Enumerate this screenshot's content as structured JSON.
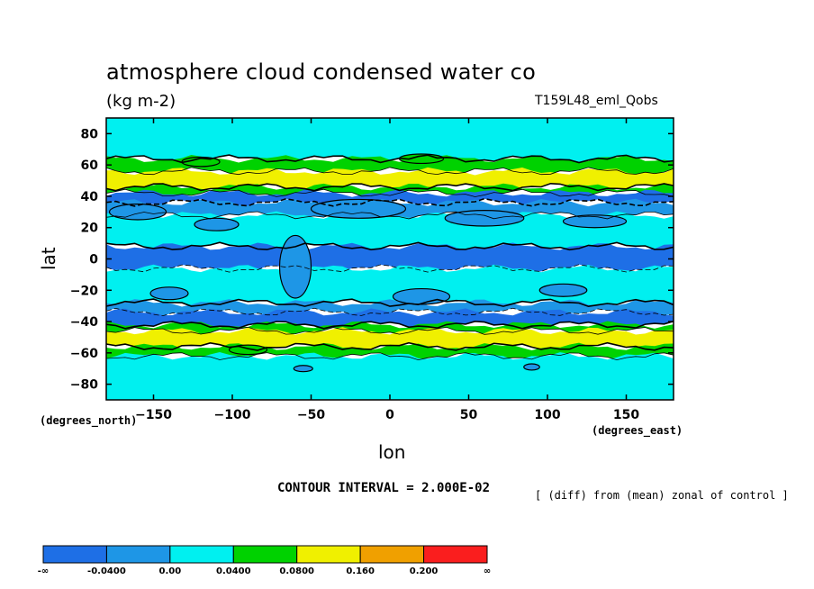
{
  "chart_data": {
    "type": "heatmap",
    "title": "atmosphere cloud condensed water co",
    "units": "(kg m-2)",
    "run_label": "T159L48_eml_Qobs",
    "xlabel": "lon",
    "ylabel": "lat",
    "x_unit_label": "(degrees_east)",
    "y_unit_label": "(degrees_north)",
    "xlim": [
      -180,
      180
    ],
    "ylim": [
      -90,
      90
    ],
    "x_ticks": [
      -150,
      -100,
      -50,
      0,
      50,
      100,
      150
    ],
    "y_ticks": [
      80,
      60,
      40,
      20,
      0,
      -20,
      -40,
      -60,
      -80
    ],
    "contour_interval": "CONTOUR INTERVAL = 2.000E-02",
    "note": "[ (diff) from (mean) zonal of control ]",
    "colorbar": {
      "labels": [
        "-∞",
        "-0.0400",
        "0.00",
        "0.0400",
        "0.0800",
        "0.160",
        "0.200",
        "∞"
      ],
      "colors": [
        "#1e6fe6",
        "#1e96e6",
        "#00f0f0",
        "#00d200",
        "#f0f000",
        "#f0a000",
        "#fa1e1e"
      ]
    },
    "zonal_bands": [
      {
        "lat_from": 90,
        "lat_to": 64,
        "color": "#00f0f0"
      },
      {
        "lat_from": 64,
        "lat_to": 56,
        "color": "#00d200"
      },
      {
        "lat_from": 56,
        "lat_to": 46,
        "color": "#f0f000"
      },
      {
        "lat_from": 46,
        "lat_to": 42,
        "color": "#00d200"
      },
      {
        "lat_from": 42,
        "lat_to": 36,
        "color": "#1e6fe6"
      },
      {
        "lat_from": 36,
        "lat_to": 28,
        "color": "#1e96e6"
      },
      {
        "lat_from": 28,
        "lat_to": 8,
        "color": "#00f0f0"
      },
      {
        "lat_from": 8,
        "lat_to": -6,
        "color": "#1e6fe6"
      },
      {
        "lat_from": -6,
        "lat_to": -28,
        "color": "#00f0f0"
      },
      {
        "lat_from": -28,
        "lat_to": -34,
        "color": "#1e96e6"
      },
      {
        "lat_from": -34,
        "lat_to": -42,
        "color": "#1e6fe6"
      },
      {
        "lat_from": -42,
        "lat_to": -46,
        "color": "#00d200"
      },
      {
        "lat_from": -46,
        "lat_to": -56,
        "color": "#f0f000"
      },
      {
        "lat_from": -56,
        "lat_to": -62,
        "color": "#00d200"
      },
      {
        "lat_from": -62,
        "lat_to": -90,
        "color": "#00f0f0"
      }
    ]
  }
}
